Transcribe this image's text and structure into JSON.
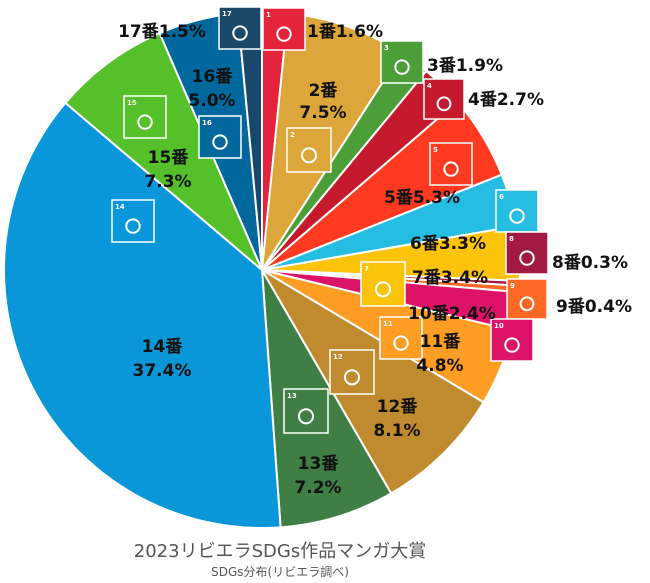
{
  "caption": {
    "title": "2023リビエラSDGs作品マンガ大賞",
    "subtitle": "SDGs分布(リビエラ調べ)"
  },
  "chart_data": {
    "type": "pie",
    "start_angle_deg": 0,
    "direction": "clockwise",
    "slices": [
      {
        "goal": 1,
        "value": 1.6,
        "color": "#e5243b",
        "label": "1番1.6%",
        "icon": "no-poverty-icon"
      },
      {
        "goal": 2,
        "value": 7.5,
        "color": "#dda63a",
        "label_lines": [
          "2番",
          "7.5%"
        ],
        "icon": "zero-hunger-icon"
      },
      {
        "goal": 3,
        "value": 1.9,
        "color": "#4c9f38",
        "label": "3番1.9%",
        "icon": "good-health-icon"
      },
      {
        "goal": 4,
        "value": 2.7,
        "color": "#c5192d",
        "label": "4番2.7%",
        "icon": "quality-education-icon"
      },
      {
        "goal": 5,
        "value": 5.3,
        "color": "#ff3a21",
        "label": "5番5.3%",
        "icon": "gender-equality-icon"
      },
      {
        "goal": 6,
        "value": 3.3,
        "color": "#26bde2",
        "label": "6番3.3%",
        "icon": "clean-water-icon"
      },
      {
        "goal": 7,
        "value": 3.4,
        "color": "#fcc30b",
        "label": "7番3.4%",
        "icon": "clean-energy-icon"
      },
      {
        "goal": 8,
        "value": 0.3,
        "color": "#a21942",
        "label": "8番0.3%",
        "icon": "decent-work-icon"
      },
      {
        "goal": 9,
        "value": 0.4,
        "color": "#fd6925",
        "label": "9番0.4%",
        "icon": "industry-innovation-icon"
      },
      {
        "goal": 10,
        "value": 2.4,
        "color": "#dd1367",
        "label": "10番2.4%",
        "icon": "reduced-inequalities-icon"
      },
      {
        "goal": 11,
        "value": 4.8,
        "color": "#fd9d24",
        "label_lines": [
          "11番",
          "4.8%"
        ],
        "icon": "sustainable-cities-icon"
      },
      {
        "goal": 12,
        "value": 8.1,
        "color": "#bf8b2e",
        "label_lines": [
          "12番",
          "8.1%"
        ],
        "icon": "responsible-consumption-icon"
      },
      {
        "goal": 13,
        "value": 7.2,
        "color": "#3f7e44",
        "label_lines": [
          "13番",
          "7.2%"
        ],
        "icon": "climate-action-icon"
      },
      {
        "goal": 14,
        "value": 37.4,
        "color": "#0a97d9",
        "label_lines": [
          "14番",
          "37.4%"
        ],
        "icon": "life-below-water-icon"
      },
      {
        "goal": 15,
        "value": 7.3,
        "color": "#56c02b",
        "label_lines": [
          "15番",
          "7.3%"
        ],
        "icon": "life-on-land-icon"
      },
      {
        "goal": 16,
        "value": 5.0,
        "color": "#00689d",
        "label_lines": [
          "16番",
          "5.0%"
        ],
        "icon": "peace-justice-icon"
      },
      {
        "goal": 17,
        "value": 1.5,
        "color": "#19486a",
        "label": "17番1.5%",
        "icon": "partnerships-icon"
      }
    ]
  }
}
